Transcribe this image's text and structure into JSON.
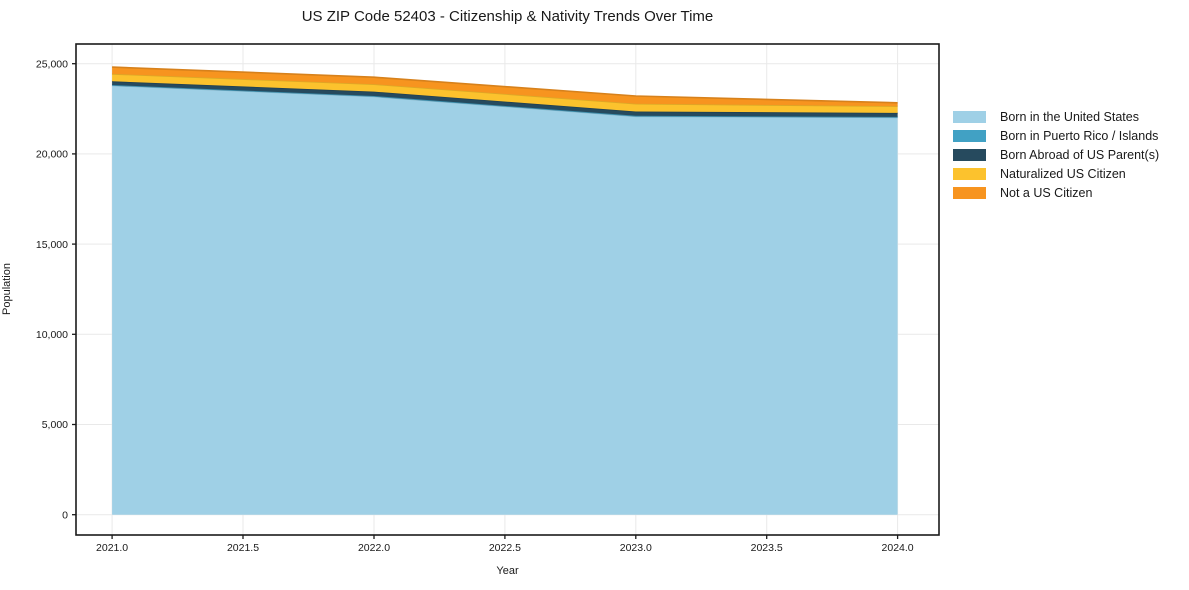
{
  "title": "US ZIP Code 52403 - Citizenship & Nativity Trends Over Time",
  "chart_data": {
    "type": "area",
    "stacked": true,
    "title": "US ZIP Code 52403 - Citizenship & Nativity Trends Over Time",
    "xlabel": "Year",
    "ylabel": "Population",
    "x": [
      2021,
      2022,
      2023,
      2024
    ],
    "series": [
      {
        "name": "Born in the United States",
        "color": "#9fd0e6",
        "values": [
          23790,
          23180,
          22080,
          22020
        ]
      },
      {
        "name": "Born in Puerto Rico / Islands",
        "color": "#41a1c4",
        "values": [
          30,
          30,
          30,
          30
        ]
      },
      {
        "name": "Born Abroad of US Parent(s)",
        "color": "#264a5e",
        "values": [
          200,
          240,
          240,
          220
        ]
      },
      {
        "name": "Naturalized US Citizen",
        "color": "#fcc22d",
        "values": [
          410,
          410,
          430,
          370
        ]
      },
      {
        "name": "Not a US Citizen",
        "color": "#f7941f",
        "values": [
          380,
          390,
          430,
          190
        ]
      }
    ],
    "xticks": [
      2021.0,
      2021.5,
      2022.0,
      2022.5,
      2023.0,
      2023.5,
      2024.0
    ],
    "yticks": [
      0,
      5000,
      10000,
      15000,
      20000,
      25000
    ],
    "xlim": [
      2020.862,
      2024.158
    ],
    "ylim": [
      -1125,
      26090
    ],
    "grid": true,
    "legend_position": "right",
    "grid_color": "#e9e9e9",
    "axis_color": "#1a1a1a"
  }
}
